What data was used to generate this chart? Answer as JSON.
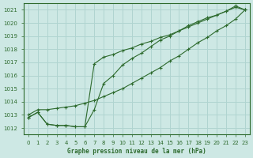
{
  "title": "Graphe pression niveau de la mer (hPa)",
  "bg_color": "#cde8e4",
  "grid_color": "#b0d4d0",
  "line_color": "#2d6a2d",
  "xlim": [
    -0.5,
    23.5
  ],
  "ylim": [
    1011.5,
    1021.5
  ],
  "xticks": [
    0,
    1,
    2,
    3,
    4,
    5,
    6,
    7,
    8,
    9,
    10,
    11,
    12,
    13,
    14,
    15,
    16,
    17,
    18,
    19,
    20,
    21,
    22,
    23
  ],
  "yticks": [
    1012,
    1013,
    1014,
    1015,
    1016,
    1017,
    1018,
    1019,
    1020,
    1021
  ],
  "series": [
    [
      1012.8,
      1013.2,
      1012.3,
      1012.2,
      1012.2,
      1012.1,
      1012.1,
      1013.4,
      1015.4,
      1016.0,
      1016.8,
      1017.3,
      1017.7,
      1018.2,
      1018.7,
      1019.0,
      1019.4,
      1019.8,
      1020.1,
      1020.4,
      1020.6,
      1020.9,
      1021.2,
      1021.0
    ],
    [
      1012.8,
      1013.2,
      1012.3,
      1012.2,
      1012.2,
      1012.1,
      1012.1,
      1016.9,
      1017.4,
      1017.6,
      1017.9,
      1018.1,
      1018.4,
      1018.6,
      1018.9,
      1019.1,
      1019.4,
      1019.7,
      1020.0,
      1020.3,
      1020.6,
      1020.9,
      1021.3,
      1021.0
    ],
    [
      1013.0,
      1013.4,
      1013.4,
      1013.5,
      1013.6,
      1013.7,
      1013.9,
      1014.1,
      1014.4,
      1014.7,
      1015.0,
      1015.4,
      1015.8,
      1016.2,
      1016.6,
      1017.1,
      1017.5,
      1018.0,
      1018.5,
      1018.9,
      1019.4,
      1019.8,
      1020.3,
      1021.0
    ]
  ]
}
